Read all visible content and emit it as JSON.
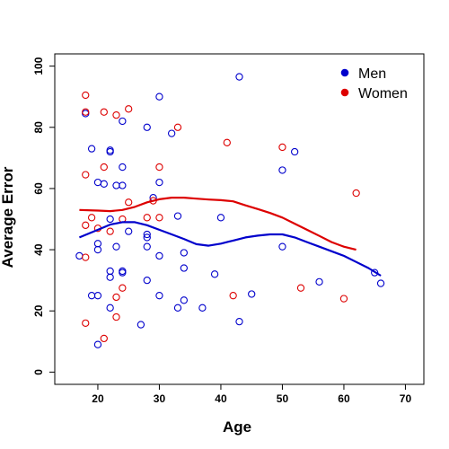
{
  "chart_data": {
    "type": "scatter",
    "xlabel": "Age",
    "ylabel": "Average Error",
    "xlim": [
      13,
      73
    ],
    "ylim": [
      -4,
      104
    ],
    "x_ticks": [
      20,
      30,
      40,
      50,
      60,
      70
    ],
    "y_ticks": [
      0,
      20,
      40,
      60,
      80,
      100
    ],
    "legend_position": "top-right",
    "series": [
      {
        "name": "Men",
        "color": "#0000cc",
        "points": [
          [
            17,
            38
          ],
          [
            18,
            84.5
          ],
          [
            19,
            73
          ],
          [
            19,
            25
          ],
          [
            20,
            62
          ],
          [
            20,
            42
          ],
          [
            20,
            40
          ],
          [
            20,
            25
          ],
          [
            20,
            9
          ],
          [
            21,
            61.5
          ],
          [
            22,
            72.5
          ],
          [
            22,
            72
          ],
          [
            22,
            50
          ],
          [
            22,
            33
          ],
          [
            22,
            31
          ],
          [
            22,
            21
          ],
          [
            23,
            61
          ],
          [
            23,
            41
          ],
          [
            24,
            82
          ],
          [
            24,
            67
          ],
          [
            24,
            61
          ],
          [
            24,
            33
          ],
          [
            24,
            32.5
          ],
          [
            25,
            46
          ],
          [
            27,
            15.5
          ],
          [
            28,
            80
          ],
          [
            28,
            45
          ],
          [
            28,
            44
          ],
          [
            28,
            41
          ],
          [
            28,
            30
          ],
          [
            29,
            57
          ],
          [
            30,
            90
          ],
          [
            30,
            62
          ],
          [
            30,
            38
          ],
          [
            30,
            25
          ],
          [
            32,
            78
          ],
          [
            33,
            51
          ],
          [
            33,
            21
          ],
          [
            34,
            39
          ],
          [
            34,
            34
          ],
          [
            34,
            23.5
          ],
          [
            37,
            21
          ],
          [
            39,
            32
          ],
          [
            40,
            50.5
          ],
          [
            43,
            96.5
          ],
          [
            43,
            16.5
          ],
          [
            45,
            25.5
          ],
          [
            50,
            66
          ],
          [
            50,
            41
          ],
          [
            52,
            72
          ],
          [
            56,
            29.5
          ],
          [
            65,
            32.5
          ],
          [
            66,
            29
          ]
        ],
        "smooth_curve": [
          [
            17,
            44
          ],
          [
            20,
            46.5
          ],
          [
            22,
            48.2
          ],
          [
            24,
            49
          ],
          [
            26,
            49
          ],
          [
            28,
            48
          ],
          [
            30,
            46.5
          ],
          [
            32,
            45
          ],
          [
            34,
            43.5
          ],
          [
            36,
            41.8
          ],
          [
            38,
            41.3
          ],
          [
            40,
            42
          ],
          [
            42,
            43
          ],
          [
            44,
            44
          ],
          [
            46,
            44.6
          ],
          [
            48,
            45
          ],
          [
            50,
            45
          ],
          [
            52,
            44
          ],
          [
            54,
            42.5
          ],
          [
            56,
            41
          ],
          [
            58,
            39.5
          ],
          [
            60,
            38
          ],
          [
            62,
            36
          ],
          [
            64,
            34
          ],
          [
            66,
            31.5
          ]
        ]
      },
      {
        "name": "Women",
        "color": "#dd0000",
        "points": [
          [
            18,
            90.5
          ],
          [
            18,
            85
          ],
          [
            18,
            64.5
          ],
          [
            18,
            48
          ],
          [
            18,
            37.5
          ],
          [
            18,
            16
          ],
          [
            19,
            50.5
          ],
          [
            20,
            47
          ],
          [
            21,
            85
          ],
          [
            21,
            67
          ],
          [
            21,
            11
          ],
          [
            22,
            46
          ],
          [
            23,
            84
          ],
          [
            23,
            24.5
          ],
          [
            23,
            18
          ],
          [
            24,
            50
          ],
          [
            24,
            27.5
          ],
          [
            25,
            86
          ],
          [
            25,
            55.5
          ],
          [
            28,
            50.5
          ],
          [
            29,
            56
          ],
          [
            30,
            67
          ],
          [
            30,
            50.5
          ],
          [
            33,
            80
          ],
          [
            41,
            75
          ],
          [
            42,
            25
          ],
          [
            50,
            73.5
          ],
          [
            53,
            27.5
          ],
          [
            60,
            24
          ],
          [
            62,
            58.5
          ]
        ],
        "smooth_curve": [
          [
            17,
            53
          ],
          [
            20,
            52.8
          ],
          [
            22,
            52.6
          ],
          [
            24,
            53
          ],
          [
            26,
            54
          ],
          [
            28,
            55.5
          ],
          [
            30,
            56.5
          ],
          [
            32,
            57
          ],
          [
            34,
            57
          ],
          [
            36,
            56.7
          ],
          [
            38,
            56.4
          ],
          [
            40,
            56.2
          ],
          [
            42,
            55.8
          ],
          [
            44,
            54.5
          ],
          [
            46,
            53.3
          ],
          [
            48,
            52
          ],
          [
            50,
            50.5
          ],
          [
            52,
            48.5
          ],
          [
            54,
            46.5
          ],
          [
            56,
            44.5
          ],
          [
            58,
            42.5
          ],
          [
            60,
            41
          ],
          [
            62,
            40
          ]
        ]
      }
    ]
  }
}
